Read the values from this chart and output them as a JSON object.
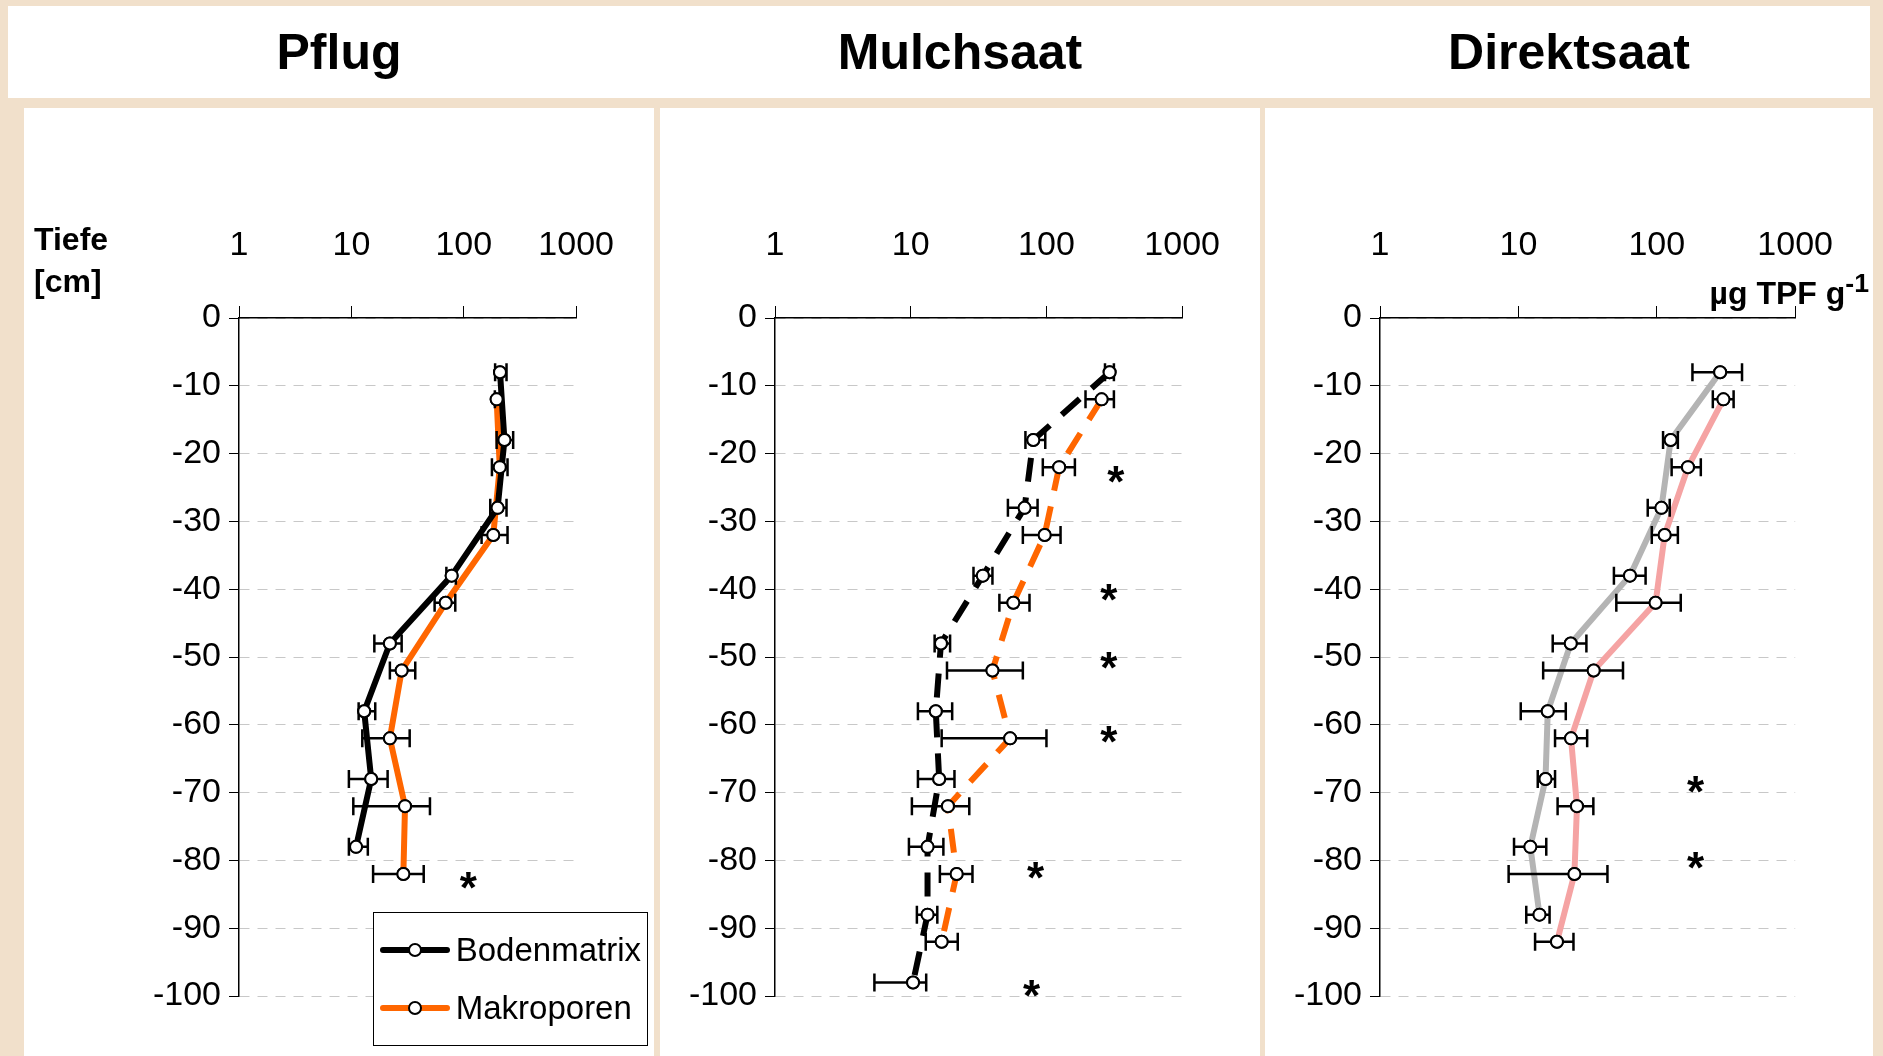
{
  "chart_data": [
    {
      "type": "line",
      "title": "Pflug",
      "ylabel": "Tiefe [cm]",
      "log": "x",
      "xlim": [
        1,
        1000
      ],
      "xticks": [
        1,
        10,
        100,
        1000
      ],
      "ylim": [
        -100,
        0
      ],
      "yticks": [
        0,
        -10,
        -20,
        -30,
        -40,
        -50,
        -60,
        -70,
        -80,
        -90,
        -100
      ],
      "grid": "y",
      "legend": "bottom right",
      "marker": "circle",
      "line_style": "solid",
      "series": [
        {
          "name": "Bodenmatrix",
          "color": "#000000",
          "x": [
            210,
            230,
            200,
            78,
            22,
            13,
            15,
            11
          ],
          "values": [
            -8,
            -18,
            -28,
            -38,
            -48,
            -58,
            -68,
            -78
          ],
          "xerrors": [
            [
              190,
              240
            ],
            [
              196,
              275
            ],
            [
              172,
              240
            ],
            [
              70,
              85
            ],
            [
              16,
              28
            ],
            [
              11.6,
              16.3
            ],
            [
              9.5,
              21
            ],
            [
              9.5,
              14
            ]
          ]
        },
        {
          "name": "Makroporen",
          "color": "#ff6600",
          "x": [
            196,
            209,
            183,
            69,
            28,
            22,
            30,
            29
          ],
          "values": [
            -12,
            -22,
            -32,
            -42,
            -52,
            -62,
            -72,
            -82
          ],
          "xerrors": [
            [
              189,
              217
            ],
            [
              178,
              245
            ],
            [
              144,
              245
            ],
            [
              55,
              84
            ],
            [
              22,
              37
            ],
            [
              12.5,
              33
            ],
            [
              10.4,
              50
            ],
            [
              15.6,
              44
            ]
          ]
        }
      ],
      "annotations": [
        "*"
      ]
    },
    {
      "type": "line",
      "title": "Mulchsaat",
      "log": "x",
      "xlim": [
        1,
        1000
      ],
      "xticks": [
        1,
        10,
        100,
        1000
      ],
      "ylim": [
        -100,
        0
      ],
      "yticks": [
        0,
        -10,
        -20,
        -30,
        -40,
        -50,
        -60,
        -70,
        -80,
        -90,
        -100
      ],
      "grid": "y",
      "marker": "circle",
      "line_style": "dashed",
      "series": [
        {
          "color": "#000000",
          "x": [
            292,
            80,
            69,
            34,
            16.7,
            15.3,
            16.2,
            13.3,
            13.3,
            10.4
          ],
          "values": [
            -8,
            -18,
            -28,
            -38,
            -48,
            -58,
            -68,
            -78,
            -88,
            -98
          ],
          "xerrors": [
            [
              270,
              314
            ],
            [
              70,
              98
            ],
            [
              52,
              86
            ],
            [
              29,
              40
            ],
            [
              15,
              19.5
            ],
            [
              11.3,
              20.2
            ],
            [
              11.3,
              21
            ],
            [
              9.7,
              17.4
            ],
            [
              11.1,
              15.7
            ],
            [
              5.4,
              13
            ]
          ]
        },
        {
          "color": "#ff6600",
          "x": [
            255,
            124,
            97,
            57,
            40,
            54,
            18.8,
            21.8,
            16.9
          ],
          "values": [
            -12,
            -22,
            -32,
            -42,
            -52,
            -62,
            -72,
            -82,
            -92
          ],
          "xerrors": [
            [
              194,
              314
            ],
            [
              94,
              162
            ],
            [
              67,
              127
            ],
            [
              45,
              75
            ],
            [
              18.5,
              67
            ],
            [
              16.9,
              100
            ],
            [
              10.2,
              27
            ],
            [
              16.4,
              28.5
            ],
            [
              12.9,
              22.2
            ]
          ]
        }
      ],
      "annotations": [
        "*",
        "*",
        "*",
        "*",
        "*",
        "*"
      ]
    },
    {
      "type": "line",
      "title": "Direktsaat",
      "xlabel": "µg TPF g$^{-1}$",
      "log": "x",
      "xlim": [
        1,
        1000
      ],
      "xticks": [
        1,
        10,
        100,
        1000
      ],
      "ylim": [
        -100,
        0
      ],
      "yticks": [
        0,
        -10,
        -20,
        -30,
        -40,
        -50,
        -60,
        -70,
        -80,
        -90,
        -100
      ],
      "grid": "y",
      "marker": "circle",
      "line_style": "solid",
      "series": [
        {
          "color": "#b4b4b4",
          "x": [
            287,
            126,
            108,
            64,
            23.9,
            16.3,
            15.7,
            12.2,
            14.2
          ],
          "values": [
            -8,
            -18,
            -28,
            -38,
            -48,
            -58,
            -68,
            -78,
            -88
          ],
          "xerrors": [
            [
              181,
              413
            ],
            [
              111,
              142
            ],
            [
              86,
              124
            ],
            [
              49,
              83
            ],
            [
              17.7,
              31
            ],
            [
              10.4,
              22
            ],
            [
              13.8,
              18.4
            ],
            [
              9.3,
              15.9
            ],
            [
              11.4,
              16.8
            ]
          ]
        },
        {
          "color": "#f5a3a3",
          "x": [
            303,
            168,
            114,
            98,
            35,
            24,
            26.5,
            25.4,
            19
          ],
          "values": [
            -12,
            -22,
            -32,
            -42,
            -52,
            -62,
            -72,
            -82,
            -92
          ],
          "xerrors": [
            [
              254,
              359
            ],
            [
              128,
              208
            ],
            [
              92,
              142
            ],
            [
              51,
              149
            ],
            [
              15.1,
              57
            ],
            [
              18.4,
              31.4
            ],
            [
              19.2,
              34.8
            ],
            [
              8.5,
              44
            ],
            [
              13.2,
              25
            ]
          ]
        }
      ],
      "annotations": [
        "*",
        "*"
      ]
    }
  ]
}
